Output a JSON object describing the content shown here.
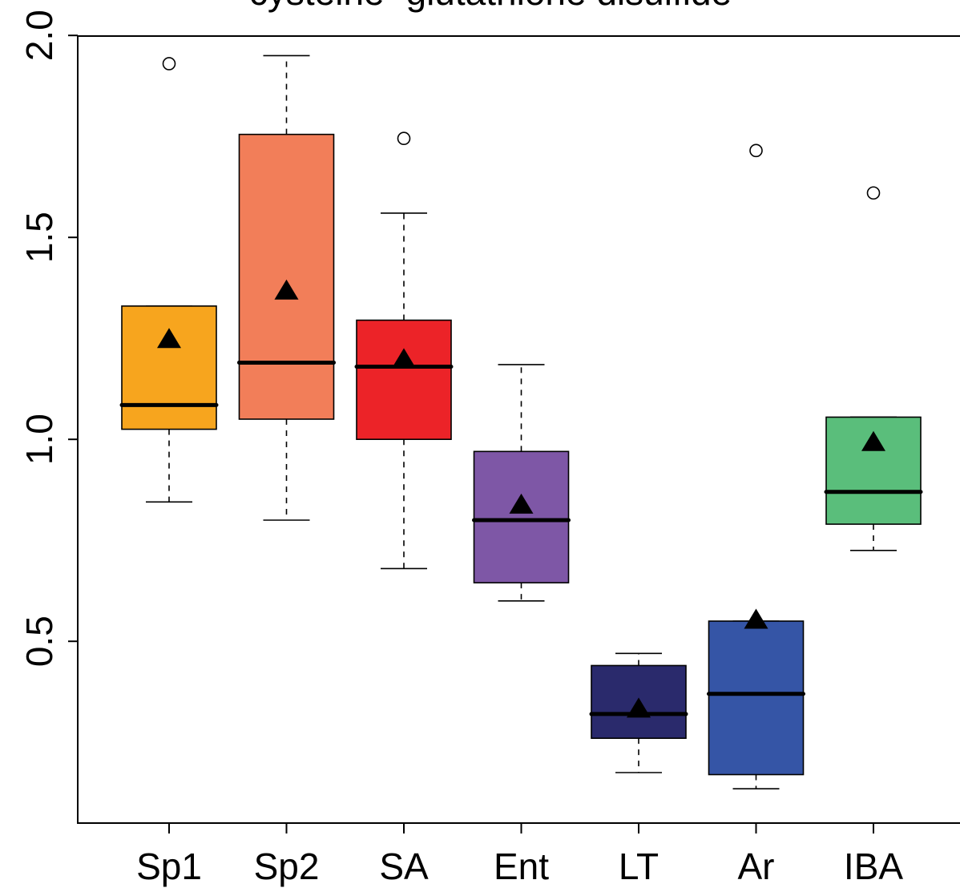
{
  "chart_data": {
    "type": "box",
    "title": "cysteine−glutathione disulfide",
    "xlabel": "",
    "ylabel": "",
    "ylim": [
      0.05,
      2.02
    ],
    "yticks": [
      0.5,
      1.0,
      1.5,
      2.0
    ],
    "ytick_labels": [
      "0.5",
      "1.0",
      "1.5",
      "2.0"
    ],
    "categories": [
      "Sp1",
      "Sp2",
      "SA",
      "Ent",
      "LT",
      "Ar",
      "IBA"
    ],
    "boxes": [
      {
        "name": "Sp1",
        "color": "#F7A51E",
        "whisker_low": 0.845,
        "q1": 1.025,
        "median": 1.085,
        "q3": 1.33,
        "whisker_high": 1.33,
        "mean": 1.25,
        "outliers": [
          1.93
        ]
      },
      {
        "name": "Sp2",
        "color": "#F27E59",
        "whisker_low": 0.8,
        "q1": 1.05,
        "median": 1.19,
        "q3": 1.755,
        "whisker_high": 1.95,
        "mean": 1.37,
        "outliers": []
      },
      {
        "name": "SA",
        "color": "#EC2328",
        "whisker_low": 0.68,
        "q1": 1.0,
        "median": 1.18,
        "q3": 1.295,
        "whisker_high": 1.56,
        "mean": 1.2,
        "outliers": [
          1.745
        ]
      },
      {
        "name": "Ent",
        "color": "#7E57A6",
        "whisker_low": 0.6,
        "q1": 0.645,
        "median": 0.8,
        "q3": 0.97,
        "whisker_high": 1.185,
        "mean": 0.84,
        "outliers": []
      },
      {
        "name": "LT",
        "color": "#2A2A6C",
        "whisker_low": 0.175,
        "q1": 0.26,
        "median": 0.32,
        "q3": 0.44,
        "whisker_high": 0.47,
        "mean": 0.335,
        "outliers": []
      },
      {
        "name": "Ar",
        "color": "#3555A6",
        "whisker_low": 0.135,
        "q1": 0.17,
        "median": 0.37,
        "q3": 0.55,
        "whisker_high": 0.55,
        "mean": 0.555,
        "outliers": [
          1.715
        ]
      },
      {
        "name": "IBA",
        "color": "#5ABE7B",
        "whisker_low": 0.725,
        "q1": 0.79,
        "median": 0.87,
        "q3": 1.055,
        "whisker_high": 1.055,
        "mean": 0.995,
        "outliers": [
          1.61
        ]
      }
    ]
  }
}
